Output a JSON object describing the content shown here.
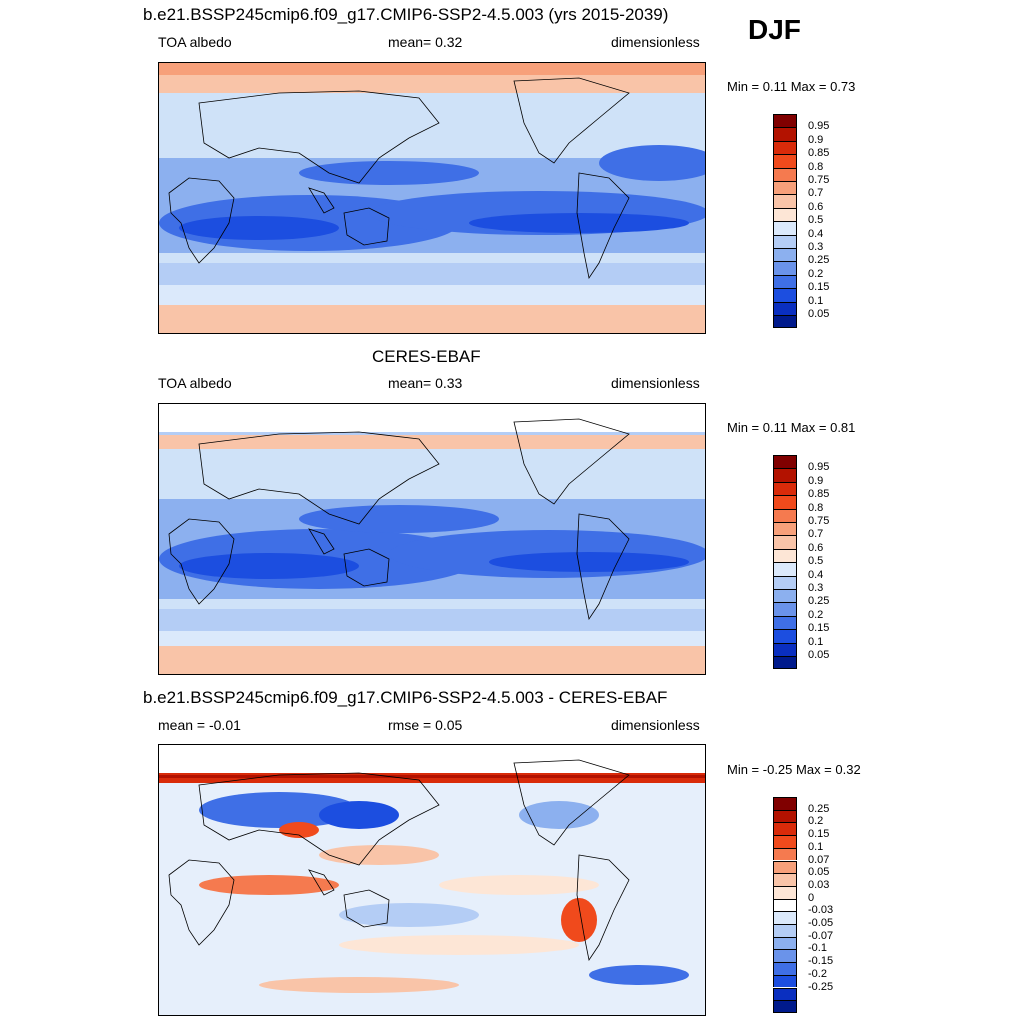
{
  "season": "DJF",
  "panels": [
    {
      "id": "model",
      "title": "b.e21.BSSP245cmip6.f09_g17.CMIP6-SSP2-4.5.003 (yrs 2015-2039)",
      "left_label": "TOA albedo",
      "center_label": "mean=   0.32",
      "right_label": "dimensionless",
      "minmax": "Min =   0.11 Max =   0.73",
      "colorbar": {
        "colors": [
          "#800000",
          "#b31200",
          "#d92b0a",
          "#f04a1c",
          "#f57a4f",
          "#f7a07a",
          "#f9c4a8",
          "#fde6d6",
          "#dbe9fb",
          "#b4cdf5",
          "#8cb0ef",
          "#6a93ea",
          "#3f6fe6",
          "#1c4ee0",
          "#0a2fc0",
          "#001a8c"
        ],
        "labels": [
          "0.95",
          "0.9",
          "0.85",
          "0.8",
          "0.75",
          "0.7",
          "0.6",
          "0.5",
          "0.4",
          "0.3",
          "0.25",
          "0.2",
          "0.15",
          "0.1",
          "0.05"
        ]
      }
    },
    {
      "id": "obs",
      "title": "CERES-EBAF",
      "left_label": "TOA albedo",
      "center_label": "mean=   0.33",
      "right_label": "dimensionless",
      "minmax": "Min =   0.11 Max =   0.81",
      "colorbar": {
        "colors": [
          "#800000",
          "#b31200",
          "#d92b0a",
          "#f04a1c",
          "#f57a4f",
          "#f7a07a",
          "#f9c4a8",
          "#fde6d6",
          "#dbe9fb",
          "#b4cdf5",
          "#8cb0ef",
          "#6a93ea",
          "#3f6fe6",
          "#1c4ee0",
          "#0a2fc0",
          "#001a8c"
        ],
        "labels": [
          "0.95",
          "0.9",
          "0.85",
          "0.8",
          "0.75",
          "0.7",
          "0.6",
          "0.5",
          "0.4",
          "0.3",
          "0.25",
          "0.2",
          "0.15",
          "0.1",
          "0.05"
        ]
      }
    },
    {
      "id": "diff",
      "title": "b.e21.BSSP245cmip6.f09_g17.CMIP6-SSP2-4.5.003 - CERES-EBAF",
      "left_label": "mean =  -0.01",
      "center_label": "rmse =   0.05",
      "right_label": "dimensionless",
      "minmax": "Min =  -0.25 Max =   0.32",
      "colorbar": {
        "colors": [
          "#800000",
          "#b31200",
          "#d92b0a",
          "#f04a1c",
          "#f57a4f",
          "#f7a07a",
          "#f9c4a8",
          "#fde6d6",
          "#ffffff",
          "#dbe9fb",
          "#b4cdf5",
          "#8cb0ef",
          "#6a93ea",
          "#3f6fe6",
          "#1c4ee0",
          "#0a2fc0",
          "#001a8c"
        ],
        "labels": [
          "0.25",
          "0.2",
          "0.15",
          "0.1",
          "0.07",
          "0.05",
          "0.03",
          "0",
          "-0.03",
          "-0.05",
          "-0.07",
          "-0.1",
          "-0.15",
          "-0.2",
          "-0.25"
        ]
      }
    }
  ]
}
